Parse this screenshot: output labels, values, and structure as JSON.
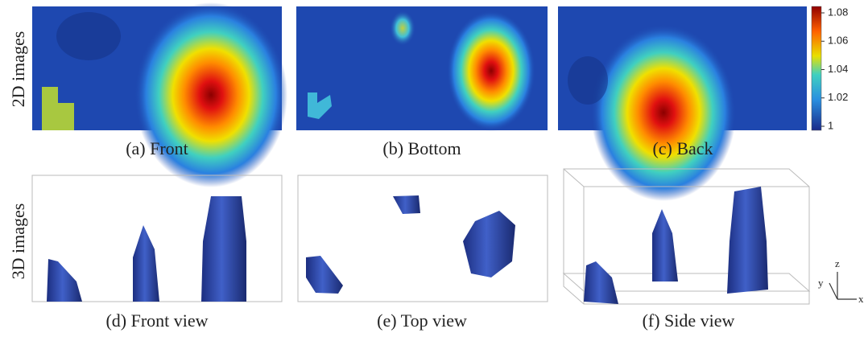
{
  "row_labels": [
    "2D images",
    "3D images"
  ],
  "captions": [
    "(a) Front",
    "(b) Bottom",
    "(c) Back",
    "(d) Front view",
    "(e) Top view",
    "(f) Side view"
  ],
  "colorbar": {
    "ticks": [
      1,
      1.02,
      1.04,
      1.06,
      1.08
    ]
  },
  "axes_labels": {
    "x": "x",
    "y": "y",
    "z": "z"
  }
}
